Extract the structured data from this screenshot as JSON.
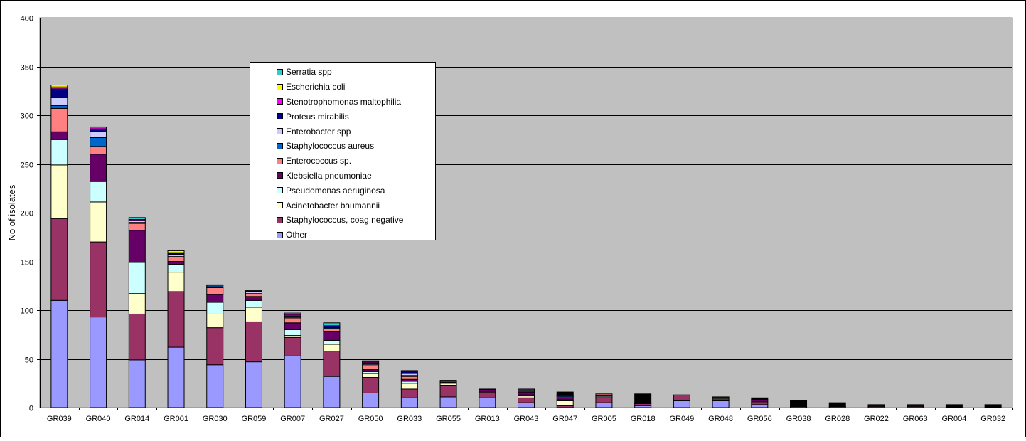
{
  "chart_data": {
    "type": "bar",
    "stacked": true,
    "title": "",
    "xlabel": "",
    "ylabel": "No of isolates",
    "ylim": [
      0,
      400
    ],
    "yticks": [
      0,
      50,
      100,
      150,
      200,
      250,
      300,
      350,
      400
    ],
    "grid": true,
    "legend_position": "top-center",
    "plot_background": "#c0c0c0",
    "categories": [
      "GR039",
      "GR040",
      "GR014",
      "GR001",
      "GR030",
      "GR059",
      "GR007",
      "GR027",
      "GR050",
      "GR033",
      "GR055",
      "GR013",
      "GR043",
      "GR047",
      "GR005",
      "GR018",
      "GR049",
      "GR048",
      "GR056",
      "GR038",
      "GR028",
      "GR022",
      "GR063",
      "GR004",
      "GR032"
    ],
    "series": [
      {
        "name": "Other",
        "color": "#9999ff",
        "values": [
          110,
          93,
          49,
          62,
          44,
          47,
          53,
          32,
          15,
          10,
          11,
          10,
          5,
          0,
          5,
          2,
          7,
          7,
          3,
          1,
          1,
          1,
          1,
          0,
          0
        ]
      },
      {
        "name": "Staphylococcus, coag negative",
        "color": "#993366",
        "values": [
          84,
          77,
          47,
          57,
          38,
          41,
          19,
          26,
          16,
          9,
          12,
          6,
          5,
          2,
          5,
          2,
          6,
          2,
          3,
          0,
          0,
          1,
          1,
          0,
          0
        ]
      },
      {
        "name": "Acinetobacter baumannii",
        "color": "#ffffcc",
        "values": [
          55,
          41,
          21,
          20,
          14,
          15,
          2,
          7,
          4,
          6,
          2,
          0,
          2,
          5,
          1,
          0,
          0,
          1,
          0,
          0,
          0,
          0,
          0,
          0,
          0
        ]
      },
      {
        "name": "Pseudomonas aeruginosa",
        "color": "#ccffff",
        "values": [
          26,
          21,
          32,
          8,
          12,
          7,
          6,
          4,
          2,
          2,
          1,
          0,
          1,
          1,
          1,
          0,
          0,
          0,
          0,
          0,
          0,
          0,
          0,
          0,
          0
        ]
      },
      {
        "name": "Klebsiella pneumoniae",
        "color": "#660066",
        "values": [
          8,
          28,
          33,
          3,
          8,
          4,
          7,
          9,
          2,
          2,
          0,
          2,
          3,
          2,
          0,
          1,
          0,
          1,
          2,
          0,
          0,
          0,
          0,
          0,
          0
        ]
      },
      {
        "name": "Enterococcus sp.",
        "color": "#ff8080",
        "values": [
          24,
          8,
          7,
          5,
          7,
          3,
          5,
          3,
          5,
          3,
          1,
          0,
          1,
          1,
          2,
          0,
          0,
          0,
          0,
          0,
          0,
          0,
          0,
          0,
          0
        ]
      },
      {
        "name": "Staphylococcus aureus",
        "color": "#0066cc",
        "values": [
          3,
          9,
          1,
          0,
          2,
          0,
          2,
          1,
          0,
          1,
          0,
          0,
          0,
          1,
          0,
          0,
          0,
          0,
          0,
          0,
          0,
          0,
          0,
          0,
          0
        ]
      },
      {
        "name": "Enterobacter spp",
        "color": "#ccccff",
        "values": [
          8,
          6,
          2,
          2,
          1,
          2,
          1,
          0,
          1,
          2,
          0,
          0,
          1,
          1,
          0,
          0,
          0,
          0,
          0,
          0,
          0,
          0,
          0,
          0,
          0
        ]
      },
      {
        "name": "Proteus mirabilis",
        "color": "#000080",
        "values": [
          9,
          3,
          0,
          1,
          0,
          1,
          0,
          2,
          1,
          3,
          0,
          0,
          0,
          0,
          0,
          0,
          0,
          0,
          0,
          0,
          0,
          0,
          0,
          0,
          0
        ]
      },
      {
        "name": "Stenotrophomonas maltophilia",
        "color": "#ff00ff",
        "values": [
          2,
          2,
          1,
          1,
          0,
          0,
          1,
          0,
          1,
          0,
          0,
          0,
          1,
          0,
          0,
          0,
          0,
          0,
          0,
          0,
          0,
          0,
          0,
          0,
          0
        ]
      },
      {
        "name": "Escherichia coli",
        "color": "#ffff00",
        "values": [
          2,
          0,
          0,
          2,
          0,
          0,
          1,
          0,
          1,
          0,
          1,
          0,
          0,
          0,
          0,
          0,
          0,
          0,
          0,
          0,
          0,
          0,
          0,
          0,
          0
        ]
      },
      {
        "name": "Serratia spp",
        "color": "#33cccc",
        "values": [
          0,
          0,
          2,
          0,
          0,
          0,
          0,
          3,
          0,
          0,
          0,
          0,
          0,
          0,
          0,
          0,
          0,
          0,
          0,
          0,
          0,
          0,
          0,
          0,
          0
        ]
      },
      {
        "color": "#000000",
        "values": [
          0,
          0,
          0,
          0,
          0,
          0,
          0,
          0,
          0,
          0,
          0,
          1,
          0,
          3,
          0,
          9,
          0,
          0,
          2,
          6,
          4,
          1,
          1,
          3,
          3
        ]
      }
    ]
  }
}
